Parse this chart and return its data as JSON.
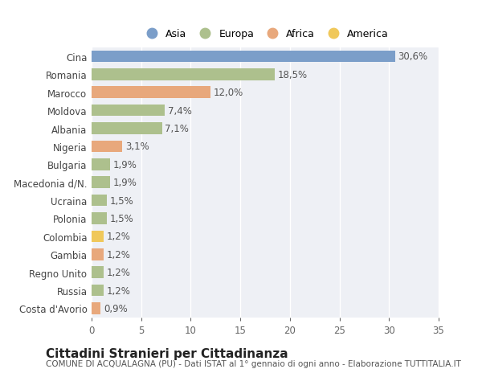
{
  "categories": [
    "Cina",
    "Romania",
    "Marocco",
    "Moldova",
    "Albania",
    "Nigeria",
    "Bulgaria",
    "Macedonia d/N.",
    "Ucraina",
    "Polonia",
    "Colombia",
    "Gambia",
    "Regno Unito",
    "Russia",
    "Costa d'Avorio"
  ],
  "values": [
    30.6,
    18.5,
    12.0,
    7.4,
    7.1,
    3.1,
    1.9,
    1.9,
    1.5,
    1.5,
    1.2,
    1.2,
    1.2,
    1.2,
    0.9
  ],
  "labels": [
    "30,6%",
    "18,5%",
    "12,0%",
    "7,4%",
    "7,1%",
    "3,1%",
    "1,9%",
    "1,9%",
    "1,5%",
    "1,5%",
    "1,2%",
    "1,2%",
    "1,2%",
    "1,2%",
    "0,9%"
  ],
  "colors": [
    "#7b9ec9",
    "#adc08d",
    "#e8a87c",
    "#adc08d",
    "#adc08d",
    "#e8a87c",
    "#adc08d",
    "#adc08d",
    "#adc08d",
    "#adc08d",
    "#f0c85a",
    "#e8a87c",
    "#adc08d",
    "#adc08d",
    "#e8a87c"
  ],
  "legend": [
    {
      "label": "Asia",
      "color": "#7b9ec9"
    },
    {
      "label": "Europa",
      "color": "#adc08d"
    },
    {
      "label": "Africa",
      "color": "#e8a87c"
    },
    {
      "label": "America",
      "color": "#f0c85a"
    }
  ],
  "xlim": [
    0,
    35
  ],
  "xticks": [
    0,
    5,
    10,
    15,
    20,
    25,
    30,
    35
  ],
  "title": "Cittadini Stranieri per Cittadinanza",
  "subtitle": "COMUNE DI ACQUALAGNA (PU) - Dati ISTAT al 1° gennaio di ogni anno - Elaborazione TUTTITALIA.IT",
  "background_color": "#ffffff",
  "plot_bg_color": "#eef0f5",
  "grid_color": "#ffffff",
  "bar_height": 0.65,
  "label_fontsize": 8.5,
  "tick_fontsize": 8.5,
  "title_fontsize": 11,
  "subtitle_fontsize": 7.5
}
